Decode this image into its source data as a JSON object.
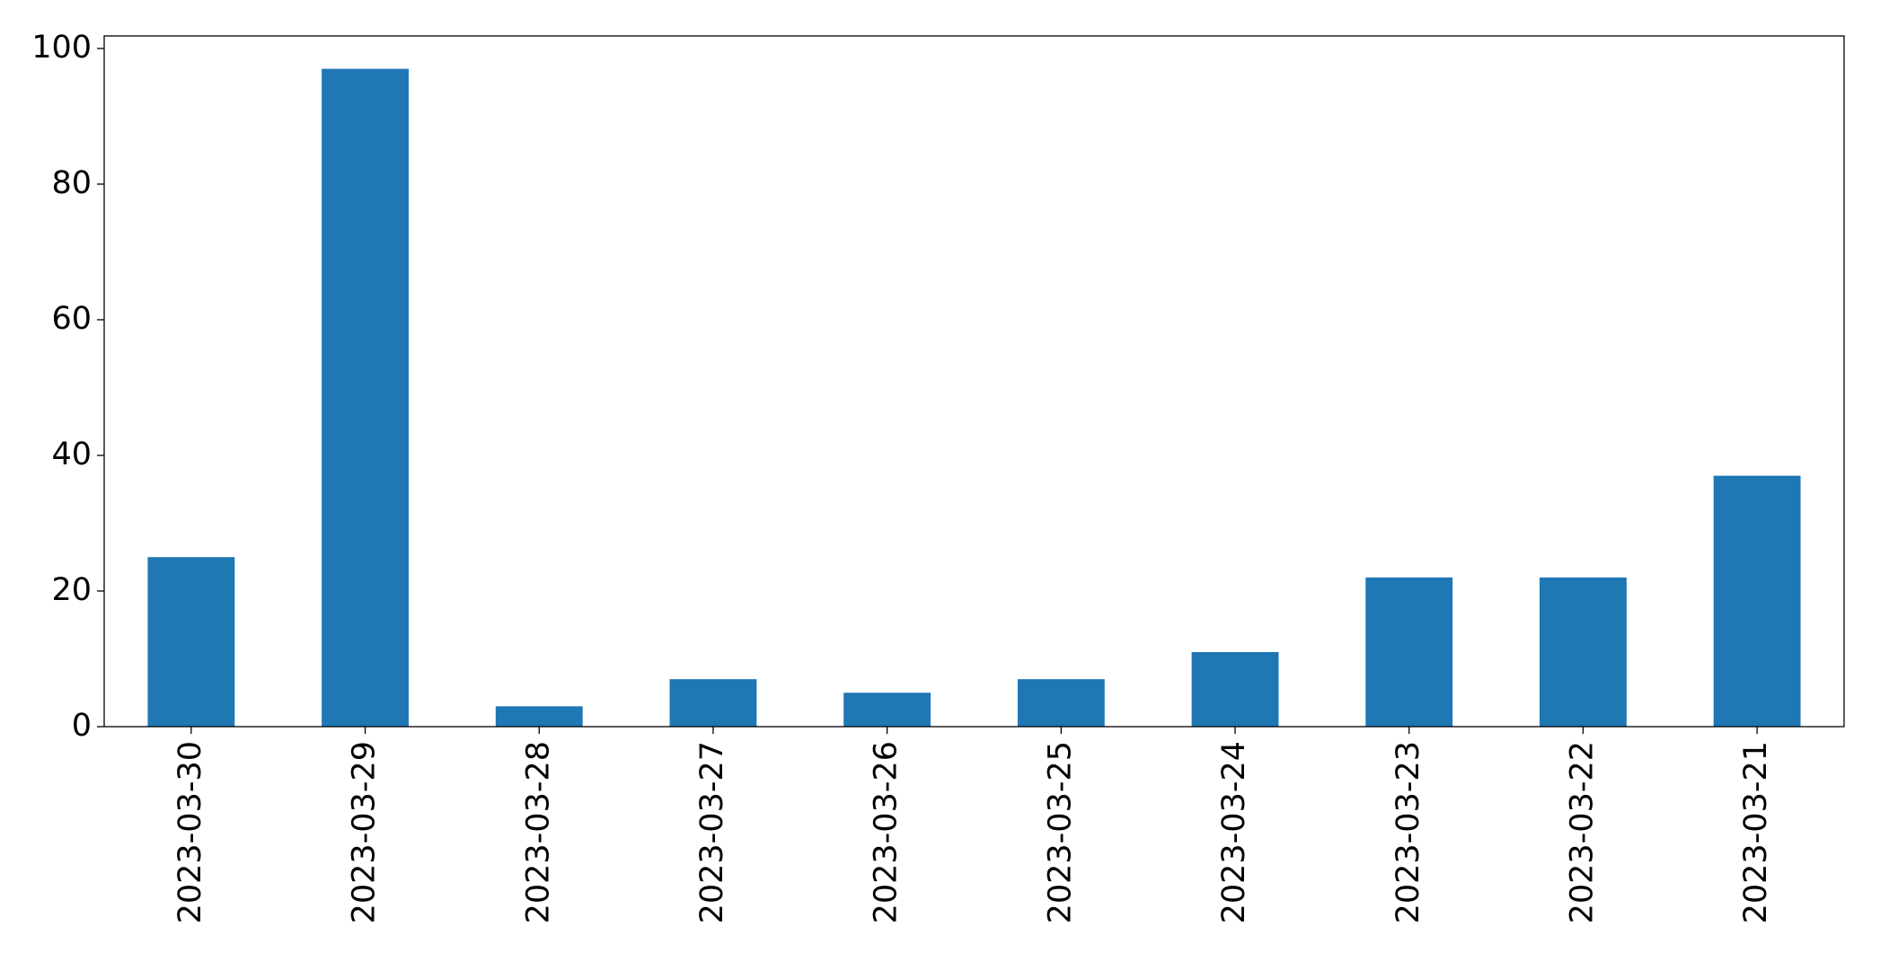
{
  "chart_data": {
    "type": "bar",
    "categories": [
      "2023-03-30",
      "2023-03-29",
      "2023-03-28",
      "2023-03-27",
      "2023-03-26",
      "2023-03-25",
      "2023-03-24",
      "2023-03-23",
      "2023-03-22",
      "2023-03-21"
    ],
    "values": [
      25,
      97,
      3,
      7,
      5,
      7,
      11,
      22,
      22,
      37
    ],
    "color": "#1f77b4",
    "ylim": [
      0,
      101.85
    ],
    "yticks": [
      0,
      20,
      40,
      60,
      80,
      100
    ],
    "grid": false
  }
}
